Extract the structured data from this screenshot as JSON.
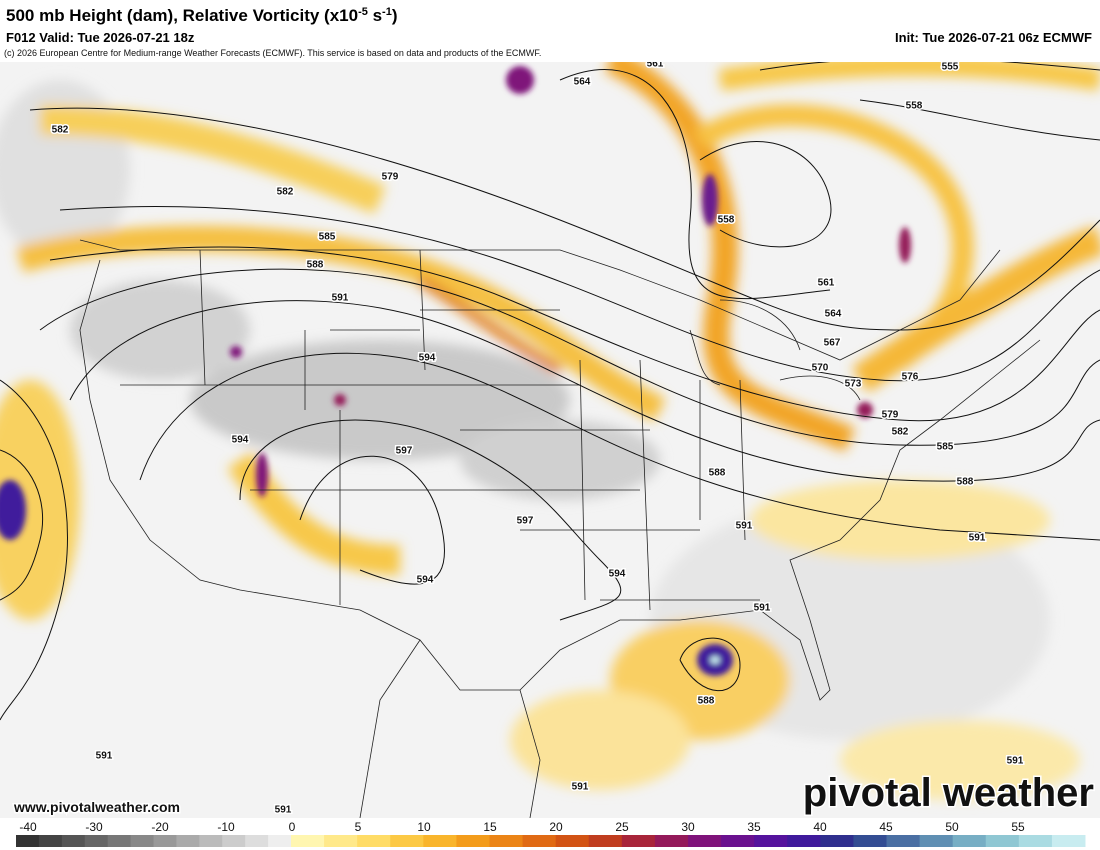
{
  "header": {
    "title": {
      "text": "500 mb Height (dam), Relative Vorticity (x10",
      "exp1": "-5",
      "mid": " s",
      "exp2": "-1",
      "close": ")"
    },
    "valid": "F012 Valid: Tue 2026-07-21 18z",
    "init": "Init: Tue 2026-07-21 06z ECMWF",
    "credit": "(c) 2026 European Centre for Medium-range Weather Forecasts (ECMWF). This service is based on data and products of the ECMWF."
  },
  "map": {
    "contour_labels": [
      582,
      579,
      582,
      585,
      588,
      591,
      594,
      594,
      597,
      597,
      594,
      594,
      591,
      588,
      591,
      588,
      591,
      591,
      591,
      591,
      591,
      588,
      585,
      582,
      579,
      576,
      573,
      570,
      567,
      564,
      561,
      558,
      558,
      555,
      561,
      564
    ]
  },
  "colorbar": {
    "ticks": [
      -40,
      -30,
      -20,
      -10,
      0,
      5,
      10,
      15,
      20,
      25,
      30,
      35,
      40,
      45,
      50,
      55
    ],
    "colors": [
      "#333333",
      "#444444",
      "#555555",
      "#666666",
      "#777777",
      "#888888",
      "#999999",
      "#aaaaaa",
      "#bbbbbb",
      "#cccccc",
      "#dddddd",
      "#eeeeee",
      "#fff6b0",
      "#ffe98a",
      "#ffdc66",
      "#fcc945",
      "#f9b52c",
      "#f39c1b",
      "#eb8416",
      "#e06a14",
      "#d25314",
      "#c03d1f",
      "#a8253a",
      "#941a5a",
      "#7f137a",
      "#6a118f",
      "#55139d",
      "#3f1a9c",
      "#2f2f8e",
      "#334d93",
      "#4a6fa3",
      "#5f8fb3",
      "#77aec4",
      "#8fc7d3",
      "#aadbe2",
      "#c8ecf0"
    ]
  },
  "footer": {
    "website": "www.pivotalweather.com",
    "logo": "pivotal weather"
  }
}
